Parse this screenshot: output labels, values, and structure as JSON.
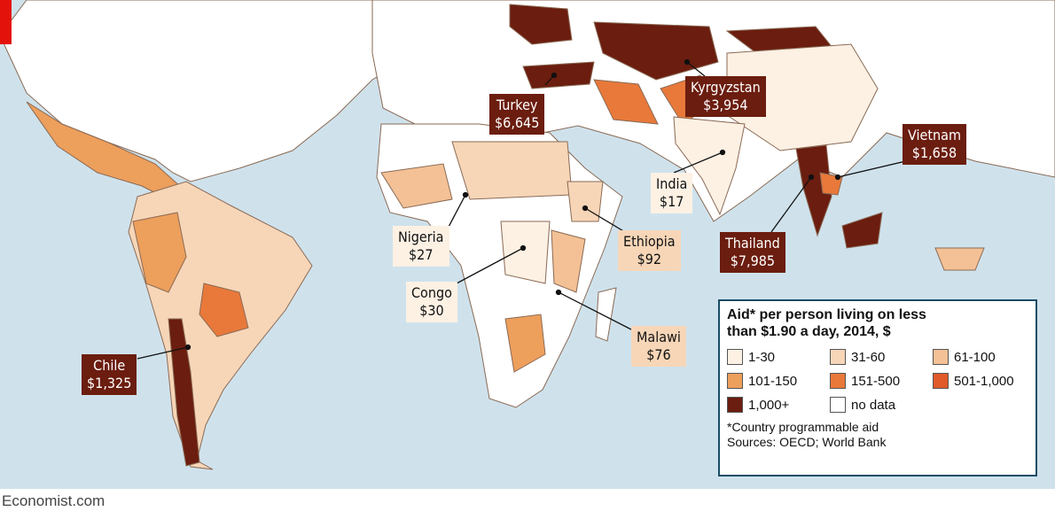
{
  "legend": {
    "title": "Aid* per person living on less than $1.90 a day, 2014, $",
    "items": [
      {
        "label": "1-30",
        "color": "#fdf1e4"
      },
      {
        "label": "31-60",
        "color": "#f7d6b8"
      },
      {
        "label": "61-100",
        "color": "#f3c195"
      },
      {
        "label": "101-150",
        "color": "#ed9f5c"
      },
      {
        "label": "151-500",
        "color": "#e8793a"
      },
      {
        "label": "501-1,000",
        "color": "#e05a2a"
      },
      {
        "label": "1,000+",
        "color": "#6b1d0f"
      },
      {
        "label": "no data",
        "color": "#ffffff"
      }
    ],
    "footnote": "*Country programmable aid",
    "sources": "Sources: OECD; World Bank"
  },
  "callouts": [
    {
      "name": "Turkey",
      "value": "$6,645"
    },
    {
      "name": "Kyrgyzstan",
      "value": "$3,954"
    },
    {
      "name": "Vietnam",
      "value": "$1,658"
    },
    {
      "name": "India",
      "value": "$17"
    },
    {
      "name": "Thailand",
      "value": "$7,985"
    },
    {
      "name": "Nigeria",
      "value": "$27"
    },
    {
      "name": "Ethiopia",
      "value": "$92"
    },
    {
      "name": "Congo",
      "value": "$30"
    },
    {
      "name": "Malawi",
      "value": "$76"
    },
    {
      "name": "Chile",
      "value": "$1,325"
    }
  ],
  "credit": "Economist.com"
}
